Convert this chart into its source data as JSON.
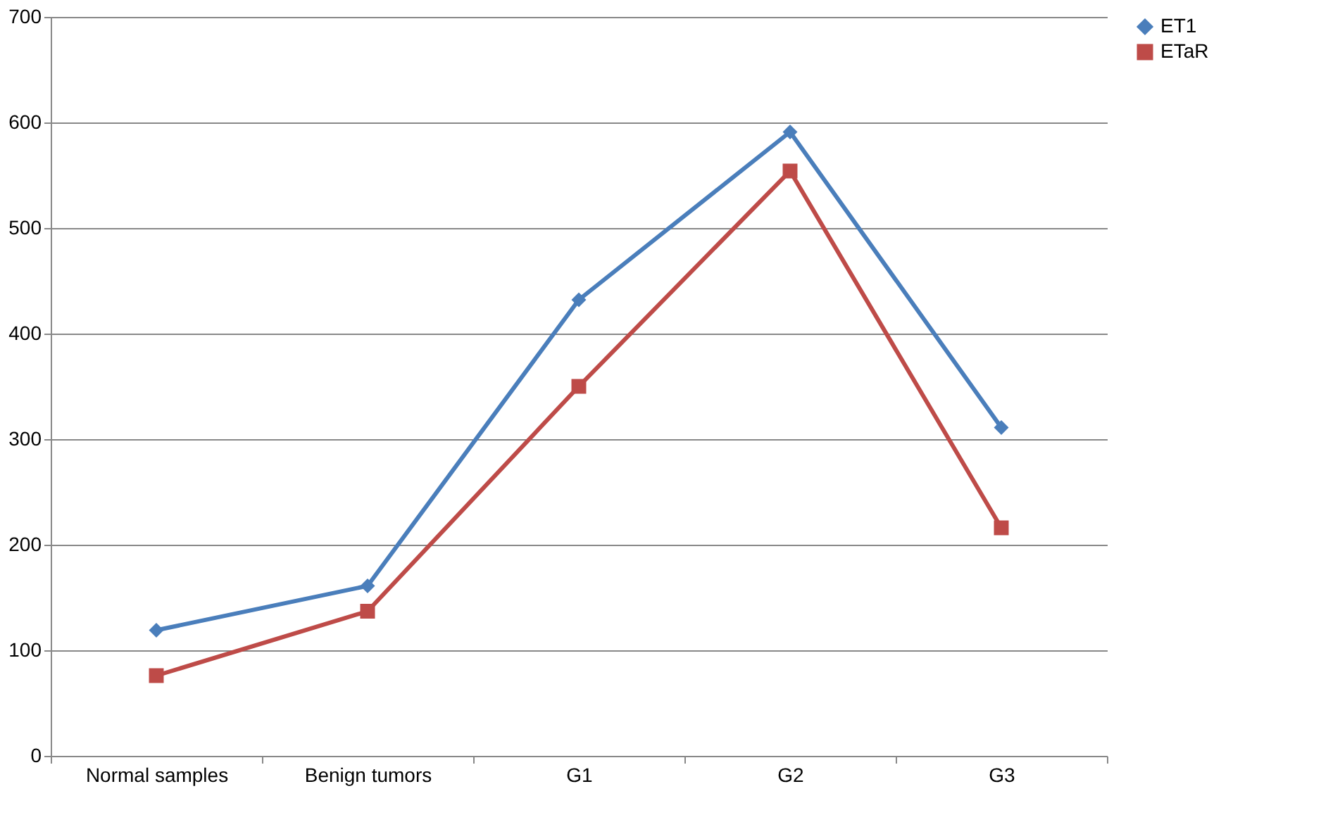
{
  "chart_data": {
    "type": "line",
    "categories": [
      "Normal samples",
      "Benign tumors",
      "G1",
      "G2",
      "G3"
    ],
    "series": [
      {
        "name": "ET1",
        "color": "#4a7ebb",
        "marker": "diamond",
        "values": [
          119,
          161,
          432,
          591,
          311
        ]
      },
      {
        "name": "ETaR",
        "color": "#be4b48",
        "marker": "square",
        "values": [
          76,
          137,
          350,
          554,
          216
        ]
      }
    ],
    "ylim": [
      0,
      700
    ],
    "yticks": [
      0,
      100,
      200,
      300,
      400,
      500,
      600,
      700
    ],
    "grid": "y",
    "legend": "right",
    "line_style": "solid"
  }
}
